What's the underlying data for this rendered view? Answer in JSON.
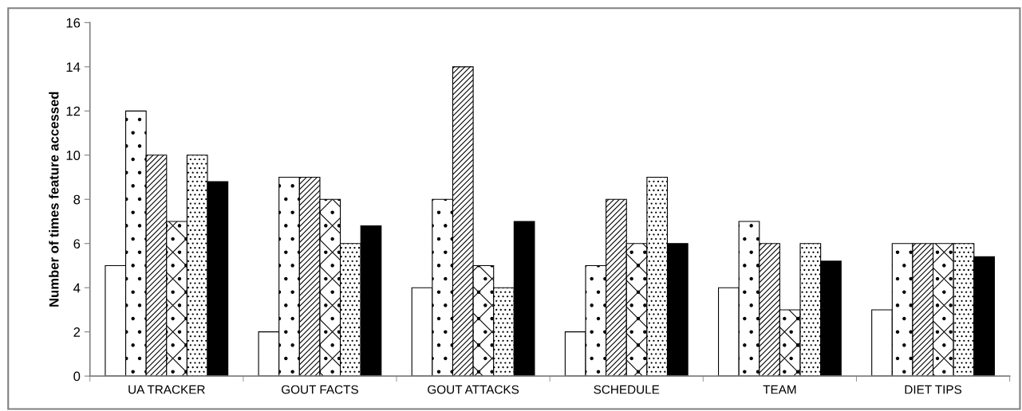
{
  "chart_data": {
    "type": "bar",
    "ylabel": "Number of times feature accessed",
    "categories": [
      "UA TRACKER",
      "GOUT FACTS",
      "GOUT ATTACKS",
      "SCHEDULE",
      "TEAM",
      "DIET TIPS"
    ],
    "series": [
      {
        "color": "#ffffff",
        "values": [
          5,
          2,
          4,
          2,
          4,
          3
        ]
      },
      {
        "color": "#000000",
        "values": [
          12,
          9,
          8,
          5,
          7,
          6
        ]
      },
      {
        "color": "#000000",
        "values": [
          10,
          9,
          14,
          8,
          6,
          6
        ]
      },
      {
        "color": "#000000",
        "values": [
          7,
          8,
          5,
          6,
          3,
          6
        ]
      },
      {
        "color": "#000000",
        "values": [
          10,
          6,
          4,
          9,
          6,
          6
        ]
      },
      {
        "color": "#000000",
        "values": [
          8.8,
          6.8,
          7,
          6,
          5.2,
          5.4
        ]
      }
    ],
    "ylim": [
      0,
      16
    ],
    "yticks": [
      0,
      2,
      4,
      6,
      8,
      10,
      12,
      14,
      16
    ],
    "grid": false
  }
}
